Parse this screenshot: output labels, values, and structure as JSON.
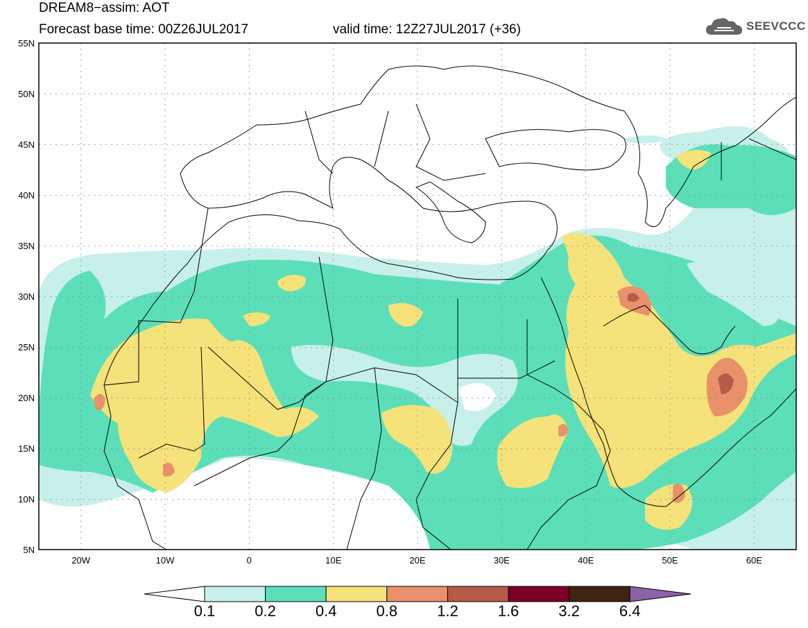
{
  "header": {
    "line1": "DREAM8−assim: AOT",
    "line2": "Forecast base time: 00Z26JUL2017",
    "valid": "valid time: 12Z27JUL2017 (+36)"
  },
  "logo": {
    "text": "SEEVCCC",
    "icon": "cloud-icon"
  },
  "map": {
    "lat_labels": [
      "55N",
      "50N",
      "45N",
      "40N",
      "35N",
      "30N",
      "25N",
      "20N",
      "15N",
      "10N",
      "5N"
    ],
    "lon_labels": [
      "20W",
      "10W",
      "0",
      "10E",
      "20E",
      "30E",
      "40E",
      "50E",
      "60E"
    ],
    "extent": {
      "lon": [
        -25,
        65
      ],
      "lat": [
        5,
        55
      ]
    }
  },
  "colorbar": {
    "labels": [
      "0.1",
      "0.2",
      "0.4",
      "0.8",
      "1.2",
      "1.6",
      "3.2",
      "6.4"
    ],
    "colors": [
      "#ffffff",
      "#c8f0ea",
      "#5cdfb8",
      "#f6e27a",
      "#e8916b",
      "#b85a48",
      "#7a0026",
      "#3e2411",
      "#8b62a8"
    ]
  }
}
